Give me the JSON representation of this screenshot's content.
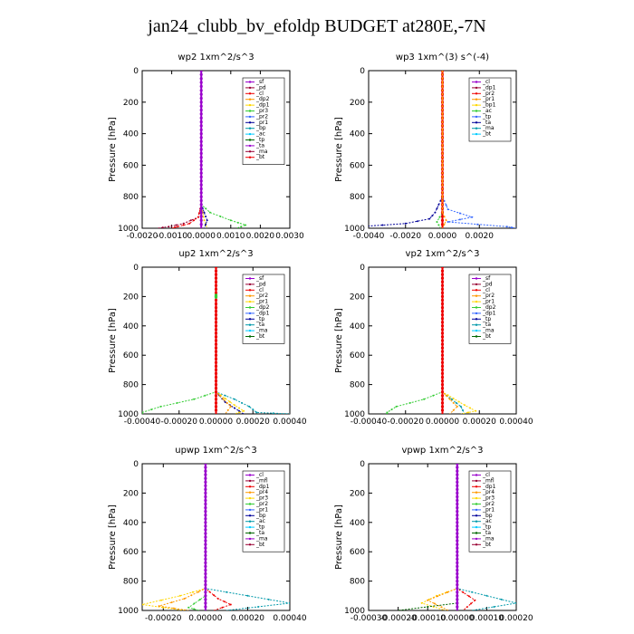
{
  "title": "jan24_clubb_bv_efoldp  BUDGET at280E,-7N",
  "colors": {
    "purple": "#9900cc",
    "darkred": "#990033",
    "red": "#ee0000",
    "orange": "#ff9900",
    "yellow": "#ffd700",
    "green": "#33cc33",
    "blue": "#3366ff",
    "navy": "#000099",
    "teal": "#0099aa",
    "cyan": "#00ccff",
    "dgreen": "#006600"
  },
  "chart_data": [
    {
      "type": "line",
      "title": "wp2   1xm^2/s^3",
      "ylabel": "Pressure [hPa]",
      "ylim": [
        1000,
        0
      ],
      "yticks": [
        0,
        200,
        400,
        600,
        800,
        1000
      ],
      "xlim": [
        -0.002,
        0.003
      ],
      "xticks": [
        -0.002,
        -0.001,
        0,
        0.001,
        0.002,
        0.003
      ],
      "xticklabels": [
        "-0.0020",
        "-0.0010",
        "0.0000",
        "0.0010",
        "0.0020",
        "0.0030"
      ],
      "legend": [
        "_sf",
        "_pd",
        "_cl",
        "_dp2",
        "_dp1",
        "_pr3",
        "_pr2",
        "_pr1",
        "_bp",
        "_ac",
        "_tp",
        "_ta",
        "_ma",
        "_bt"
      ],
      "series": [
        {
          "name": "_pd",
          "color": "darkred",
          "pressure": [
            0,
            500,
            850,
            930,
            970,
            990,
            1000
          ],
          "values": [
            0,
            0,
            0,
            -0.0001,
            -0.0006,
            -0.0011,
            -0.0015
          ]
        },
        {
          "name": "_dp1",
          "color": "red",
          "pressure": [
            0,
            500,
            850,
            930,
            970,
            990,
            1000
          ],
          "values": [
            0,
            0,
            0,
            -0.0001,
            -0.0004,
            -0.0008,
            -0.001
          ]
        },
        {
          "name": "_bp",
          "color": "green",
          "pressure": [
            0,
            500,
            850,
            900,
            950,
            980,
            1000
          ],
          "values": [
            0,
            0,
            0,
            0.0003,
            0.001,
            0.0015,
            0.0012
          ]
        },
        {
          "name": "_pr1",
          "color": "yellow",
          "pressure": [
            0,
            850,
            950,
            1000
          ],
          "values": [
            0,
            0,
            0.0001,
            0.0002
          ]
        },
        {
          "name": "_ta",
          "color": "navy",
          "pressure": [
            0,
            850,
            950,
            1000
          ],
          "values": [
            0,
            0,
            0.0002,
            0.0001
          ]
        },
        {
          "name": "_cl",
          "color": "purple",
          "pressure": [
            0,
            1000
          ],
          "values": [
            0,
            0
          ]
        }
      ]
    },
    {
      "type": "line",
      "title": "wp3   1xm^(3) s^(-4)",
      "ylabel": "Pressure [hPa]",
      "ylim": [
        1000,
        0
      ],
      "yticks": [
        0,
        200,
        400,
        600,
        800,
        1000
      ],
      "xlim": [
        -0.004,
        0.004
      ],
      "xticks": [
        -0.004,
        -0.002,
        0,
        0.002
      ],
      "xticklabels": [
        "-0.0040",
        "-0.0020",
        "0.0000",
        "0.0020"
      ],
      "legend": [
        "_cl",
        "_dp1",
        "_pr2",
        "_pr1",
        "_bp1",
        "_ac",
        "_tp",
        "_ta",
        "_ma",
        "_bt"
      ],
      "series": [
        {
          "name": "_tp",
          "color": "blue",
          "pressure": [
            0,
            800,
            880,
            930,
            960,
            990,
            1000
          ],
          "values": [
            0,
            0,
            0.0003,
            0.0016,
            0.0003,
            0.0035,
            0.004
          ]
        },
        {
          "name": "_ta",
          "color": "navy",
          "pressure": [
            0,
            800,
            900,
            940,
            970,
            990,
            1000
          ],
          "values": [
            0,
            0,
            -0.0004,
            -0.0007,
            -0.002,
            -0.0045,
            -0.004
          ]
        },
        {
          "name": "_ac",
          "color": "green",
          "pressure": [
            0,
            900,
            960,
            1000
          ],
          "values": [
            0,
            0,
            -0.0003,
            -0.0001
          ]
        },
        {
          "name": "_dp1",
          "color": "red",
          "pressure": [
            0,
            1000
          ],
          "values": [
            0,
            0
          ]
        },
        {
          "name": "_pr2",
          "color": "orange",
          "pressure": [
            0,
            900,
            950,
            1000
          ],
          "values": [
            0,
            0,
            0.0002,
            0
          ]
        }
      ]
    },
    {
      "type": "line",
      "title": "up2   1xm^2/s^3",
      "ylabel": "Pressure [hPa]",
      "ylim": [
        1000,
        0
      ],
      "yticks": [
        0,
        200,
        400,
        600,
        800,
        1000
      ],
      "xlim": [
        -0.0004,
        0.0004
      ],
      "xticks": [
        -0.0004,
        -0.0002,
        0,
        0.0002,
        0.0004
      ],
      "xticklabels": [
        "-0.00040",
        "-0.00020",
        "0.00000",
        "0.00020",
        "0.00040"
      ],
      "legend": [
        "_sf",
        "_pd",
        "_cl",
        "_pr2",
        "_pr1",
        "_dp2",
        "_dp1",
        "_tp",
        "_ta",
        "_ma",
        "_bt"
      ],
      "series": [
        {
          "name": "_pr1",
          "color": "green",
          "pressure": [
            0,
            500,
            850,
            900,
            950,
            990,
            1000
          ],
          "values": [
            0,
            0,
            0,
            -0.00012,
            -0.0003,
            -0.0004,
            -0.0004
          ]
        },
        {
          "name": "_tp",
          "color": "teal",
          "pressure": [
            0,
            850,
            900,
            950,
            990,
            1000
          ],
          "values": [
            0,
            0,
            0.0001,
            0.00018,
            0.00022,
            0.0004
          ]
        },
        {
          "name": "_ta",
          "color": "navy",
          "pressure": [
            0,
            850,
            920,
            960,
            1000
          ],
          "values": [
            0,
            0,
            5e-05,
            0.0001,
            0.00015
          ]
        },
        {
          "name": "_dp2",
          "color": "yellow",
          "pressure": [
            0,
            850,
            940,
            980,
            1000
          ],
          "values": [
            0,
            0,
            0.0001,
            0.00015,
            0.0001
          ]
        },
        {
          "name": "_pr2",
          "color": "orange",
          "pressure": [
            0,
            850,
            950,
            1000
          ],
          "values": [
            0,
            0,
            8e-05,
            5e-05
          ]
        },
        {
          "name": "_pd",
          "color": "red",
          "pressure": [
            0,
            1000
          ],
          "values": [
            0,
            0
          ]
        },
        {
          "name": "_dp1",
          "color": "green",
          "pressure": [
            190,
            200,
            210
          ],
          "values": [
            0,
            0,
            0
          ]
        }
      ]
    },
    {
      "type": "line",
      "title": "vp2   1xm^2/s^3",
      "ylabel": "Pressure [hPa]",
      "ylim": [
        1000,
        0
      ],
      "yticks": [
        0,
        200,
        400,
        600,
        800,
        1000
      ],
      "xlim": [
        -0.0004,
        0.0004
      ],
      "xticks": [
        -0.0004,
        -0.0002,
        0,
        0.0002,
        0.0004
      ],
      "xticklabels": [
        "-0.00040",
        "-0.00020",
        "0.00000",
        "0.00020",
        "0.00040"
      ],
      "legend": [
        "_sf",
        "_pd",
        "_cl",
        "_pr2",
        "_pr1",
        "_dp2",
        "_dp1",
        "_tp",
        "_ta",
        "_ma",
        "_bt"
      ],
      "series": [
        {
          "name": "_pr1",
          "color": "green",
          "pressure": [
            0,
            500,
            850,
            900,
            950,
            990,
            1000
          ],
          "values": [
            0,
            0,
            0,
            -0.0001,
            -0.00025,
            -0.0003,
            -0.0003
          ]
        },
        {
          "name": "_tp",
          "color": "teal",
          "pressure": [
            0,
            850,
            900,
            950,
            1000
          ],
          "values": [
            0,
            0,
            5e-05,
            0.0001,
            0.00012
          ]
        },
        {
          "name": "_dp2",
          "color": "yellow",
          "pressure": [
            0,
            850,
            940,
            980,
            1000
          ],
          "values": [
            0,
            0,
            0.00012,
            0.00018,
            0.0001
          ]
        },
        {
          "name": "_pr2",
          "color": "orange",
          "pressure": [
            0,
            850,
            950,
            1000
          ],
          "values": [
            0,
            0,
            8e-05,
            4e-05
          ]
        },
        {
          "name": "_pd",
          "color": "red",
          "pressure": [
            0,
            1000
          ],
          "values": [
            0,
            0
          ]
        }
      ]
    },
    {
      "type": "line",
      "title": "upwp   1xm^2/s^3",
      "ylabel": "Pressure [hPa]",
      "ylim": [
        1000,
        0
      ],
      "yticks": [
        0,
        200,
        400,
        600,
        800,
        1000
      ],
      "xlim": [
        -0.0003,
        0.0004
      ],
      "xticks": [
        -0.0002,
        0,
        0.0002,
        0.0004
      ],
      "xticklabels": [
        "-0.00020",
        "0.00000",
        "0.00020",
        "0.00040"
      ],
      "legend": [
        "_cl",
        "_mfl",
        "_dp1",
        "_pr4",
        "_pr3",
        "_pr2",
        "_pr1",
        "_bp",
        "_ac",
        "_tp",
        "_ta",
        "_ma",
        "_bt"
      ],
      "series": [
        {
          "name": "_tp",
          "color": "teal",
          "pressure": [
            0,
            850,
            900,
            950,
            1000
          ],
          "values": [
            0,
            0,
            0.0002,
            0.0004,
            0.0001
          ]
        },
        {
          "name": "_pr1",
          "color": "yellow",
          "pressure": [
            0,
            850,
            900,
            960,
            1000
          ],
          "values": [
            0,
            0,
            -0.00012,
            -0.0003,
            -0.0001
          ]
        },
        {
          "name": "_pr2",
          "color": "orange",
          "pressure": [
            0,
            850,
            920,
            970,
            1000
          ],
          "values": [
            0,
            0,
            -0.0001,
            -0.00022,
            -8e-05
          ]
        },
        {
          "name": "_dp1",
          "color": "red",
          "pressure": [
            0,
            850,
            920,
            960,
            1000
          ],
          "values": [
            0,
            0,
            6e-05,
            0.00012,
            4e-05
          ]
        },
        {
          "name": "_bp",
          "color": "green",
          "pressure": [
            0,
            900,
            980,
            1000
          ],
          "values": [
            0,
            0,
            -8e-05,
            -3e-05
          ]
        },
        {
          "name": "_cl",
          "color": "purple",
          "pressure": [
            0,
            1000
          ],
          "values": [
            0,
            0
          ]
        }
      ]
    },
    {
      "type": "line",
      "title": "vpwp   1xm^2/s^3",
      "ylabel": "Pressure [hPa]",
      "ylim": [
        1000,
        0
      ],
      "yticks": [
        0,
        200,
        400,
        600,
        800,
        1000
      ],
      "xlim": [
        -0.0003,
        0.0002
      ],
      "xticks": [
        -0.0003,
        -0.0002,
        -0.0001,
        0,
        0.0001,
        0.0002
      ],
      "xticklabels": [
        "-0.00030",
        "-0.00020",
        "-0.00010",
        "0.00000",
        "0.00010",
        "0.00020"
      ],
      "legend": [
        "_cl",
        "_mfl",
        "_dp1",
        "_pr4",
        "_pr3",
        "_pr2",
        "_pr1",
        "_bp",
        "_ac",
        "_tp",
        "_ta",
        "_ma",
        "_bt"
      ],
      "series": [
        {
          "name": "_tp",
          "color": "teal",
          "pressure": [
            0,
            850,
            900,
            950,
            1000
          ],
          "values": [
            0,
            0,
            0.0001,
            0.0002,
            5e-05
          ]
        },
        {
          "name": "_pr1",
          "color": "yellow",
          "pressure": [
            0,
            850,
            900,
            950,
            1000
          ],
          "values": [
            0,
            0,
            -7e-05,
            -0.00012,
            -4e-05
          ]
        },
        {
          "name": "_pr2",
          "color": "orange",
          "pressure": [
            0,
            850,
            930,
            1000
          ],
          "values": [
            0,
            0,
            -0.0001,
            -3e-05
          ]
        },
        {
          "name": "_dp1",
          "color": "red",
          "pressure": [
            0,
            850,
            930,
            1000
          ],
          "values": [
            0,
            0,
            6e-05,
            2e-05
          ]
        },
        {
          "name": "_bp",
          "color": "dgreen",
          "pressure": [
            0,
            950,
            1000
          ],
          "values": [
            0,
            0,
            -0.0002
          ]
        },
        {
          "name": "_cl",
          "color": "purple",
          "pressure": [
            0,
            1000
          ],
          "values": [
            0,
            0
          ]
        }
      ]
    }
  ]
}
